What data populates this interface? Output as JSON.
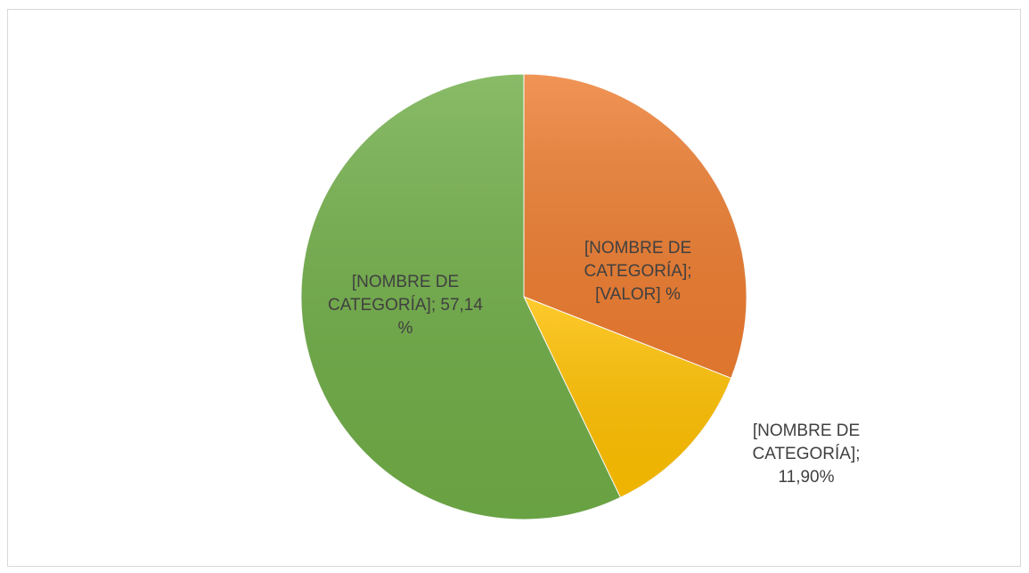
{
  "chart_data": {
    "type": "pie",
    "categories": [
      "[NOMBRE DE CATEGORÍA]",
      "[NOMBRE DE CATEGORÍA]",
      "[NOMBRE DE CATEGORÍA]"
    ],
    "values": [
      30.96,
      11.9,
      57.14
    ],
    "value_labels": [
      "[NOMBRE DE CATEGORÍA]; [VALOR] %",
      "[NOMBRE DE CATEGORÍA]; 11,90%",
      "[NOMBRE DE CATEGORÍA]; 57,14 %"
    ],
    "colors": [
      "#ed7d31",
      "#ffc000",
      "#70ad47"
    ]
  }
}
